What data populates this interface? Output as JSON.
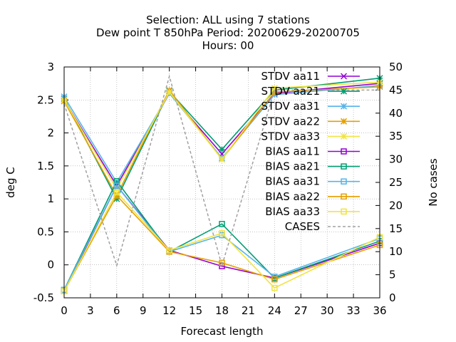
{
  "chart_data": {
    "type": "line",
    "title_lines": [
      "Selection: ALL using     7 stations",
      "Dew point T 850hPa   Period: 20200629-20200705",
      "Hours:  00"
    ],
    "xlabel": "Forecast length",
    "ylabel": "deg C",
    "y2label": "No cases",
    "x": [
      0,
      6,
      12,
      18,
      24,
      36
    ],
    "xticks": [
      0,
      3,
      6,
      9,
      12,
      15,
      18,
      21,
      24,
      27,
      30,
      33,
      36
    ],
    "xlim": [
      0,
      36
    ],
    "ylim": [
      -0.5,
      3
    ],
    "yticks": [
      -0.5,
      0,
      0.5,
      1,
      1.5,
      2,
      2.5,
      3
    ],
    "ytick_labels": [
      "-0.5",
      "0",
      "0.5",
      "1",
      "1.5",
      "2",
      "2.5",
      "3"
    ],
    "y2lim": [
      0,
      50
    ],
    "y2ticks": [
      0,
      5,
      10,
      15,
      20,
      25,
      30,
      35,
      40,
      45,
      50
    ],
    "legend_position": "top-right",
    "series": [
      {
        "name": "STDV aa11",
        "axis": "y",
        "color": "#9400d3",
        "marker": "x",
        "values": [
          2.5,
          1.2,
          2.6,
          1.68,
          2.6,
          2.75
        ]
      },
      {
        "name": "STDV aa21",
        "axis": "y",
        "color": "#009e73",
        "marker": "star",
        "values": [
          2.52,
          1.0,
          2.63,
          1.75,
          2.65,
          2.83
        ]
      },
      {
        "name": "STDV aa31",
        "axis": "y",
        "color": "#56b4e9",
        "marker": "star",
        "values": [
          2.55,
          1.25,
          2.6,
          1.62,
          2.58,
          2.72
        ]
      },
      {
        "name": "STDV aa22",
        "axis": "y",
        "color": "#e69f00",
        "marker": "star",
        "values": [
          2.48,
          1.05,
          2.65,
          1.6,
          2.62,
          2.7
        ]
      },
      {
        "name": "STDV aa33",
        "axis": "y",
        "color": "#f0e442",
        "marker": "star",
        "values": [
          2.5,
          1.15,
          2.62,
          1.6,
          2.68,
          2.77
        ]
      },
      {
        "name": "BIAS aa11",
        "axis": "y",
        "color": "#9400d3",
        "marker": "square",
        "values": [
          -0.4,
          1.2,
          0.22,
          -0.02,
          -0.2,
          0.33
        ]
      },
      {
        "name": "BIAS aa21",
        "axis": "y",
        "color": "#009e73",
        "marker": "square",
        "values": [
          -0.38,
          1.27,
          0.2,
          0.62,
          -0.2,
          0.36
        ]
      },
      {
        "name": "BIAS aa31",
        "axis": "y",
        "color": "#56b4e9",
        "marker": "square",
        "values": [
          -0.38,
          1.2,
          0.2,
          0.45,
          -0.18,
          0.4
        ]
      },
      {
        "name": "BIAS aa22",
        "axis": "y",
        "color": "#e69f00",
        "marker": "square",
        "values": [
          -0.4,
          1.05,
          0.2,
          0.03,
          -0.22,
          0.3
        ]
      },
      {
        "name": "BIAS aa33",
        "axis": "y",
        "color": "#f0e442",
        "marker": "square",
        "values": [
          -0.4,
          1.1,
          0.22,
          0.48,
          -0.35,
          0.42
        ]
      },
      {
        "name": "CASES",
        "axis": "y2",
        "color": "#a0a0a0",
        "marker": "none",
        "dashed": true,
        "values": [
          42,
          7,
          48,
          7,
          45,
          45
        ]
      }
    ]
  }
}
